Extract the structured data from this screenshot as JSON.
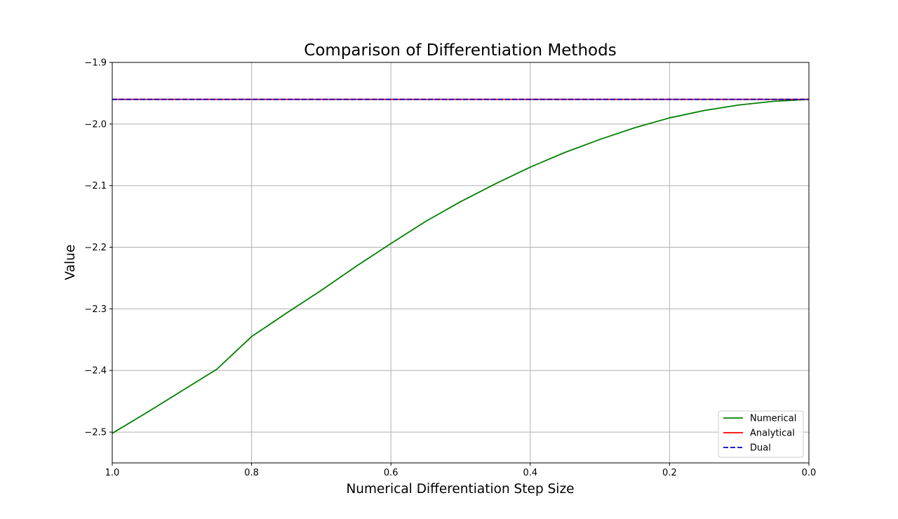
{
  "chart_data": {
    "type": "line",
    "title": "Comparison of Differentiation Methods",
    "xlabel": "Numerical Differentiation Step Size",
    "ylabel": "Value",
    "xlim": [
      1.0,
      0.0
    ],
    "ylim": [
      -2.55,
      -1.9
    ],
    "x_ticks": [
      1.0,
      0.8,
      0.6,
      0.4,
      0.2,
      0.0
    ],
    "x_tick_labels": [
      "1.0",
      "0.8",
      "0.6",
      "0.4",
      "0.2",
      "0.0"
    ],
    "y_ticks": [
      -1.9,
      -2.0,
      -2.1,
      -2.2,
      -2.3,
      -2.4,
      -2.5
    ],
    "y_tick_labels": [
      "−1.9",
      "−2.0",
      "−2.1",
      "−2.2",
      "−2.3",
      "−2.4",
      "−2.5"
    ],
    "grid": true,
    "legend_position": "lower-right",
    "series": [
      {
        "name": "Numerical",
        "color": "#008000",
        "style": "solid",
        "x": [
          1.0,
          0.95,
          0.9,
          0.85,
          0.8,
          0.75,
          0.7,
          0.65,
          0.6,
          0.55,
          0.5,
          0.45,
          0.4,
          0.35,
          0.3,
          0.25,
          0.2,
          0.15,
          0.1,
          0.05,
          0.0
        ],
        "y": [
          -2.502,
          -2.468,
          -2.433,
          -2.398,
          -2.345,
          -2.307,
          -2.27,
          -2.231,
          -2.194,
          -2.158,
          -2.126,
          -2.097,
          -2.07,
          -2.046,
          -2.025,
          -2.006,
          -1.99,
          -1.978,
          -1.969,
          -1.963,
          -1.96
        ]
      },
      {
        "name": "Analytical",
        "color": "#ff0000",
        "style": "solid",
        "x": [
          1.0,
          0.0
        ],
        "y": [
          -1.96,
          -1.96
        ]
      },
      {
        "name": "Dual",
        "color": "#0000cc",
        "style": "dashed",
        "x": [
          1.0,
          0.0
        ],
        "y": [
          -1.96,
          -1.96
        ]
      }
    ]
  }
}
